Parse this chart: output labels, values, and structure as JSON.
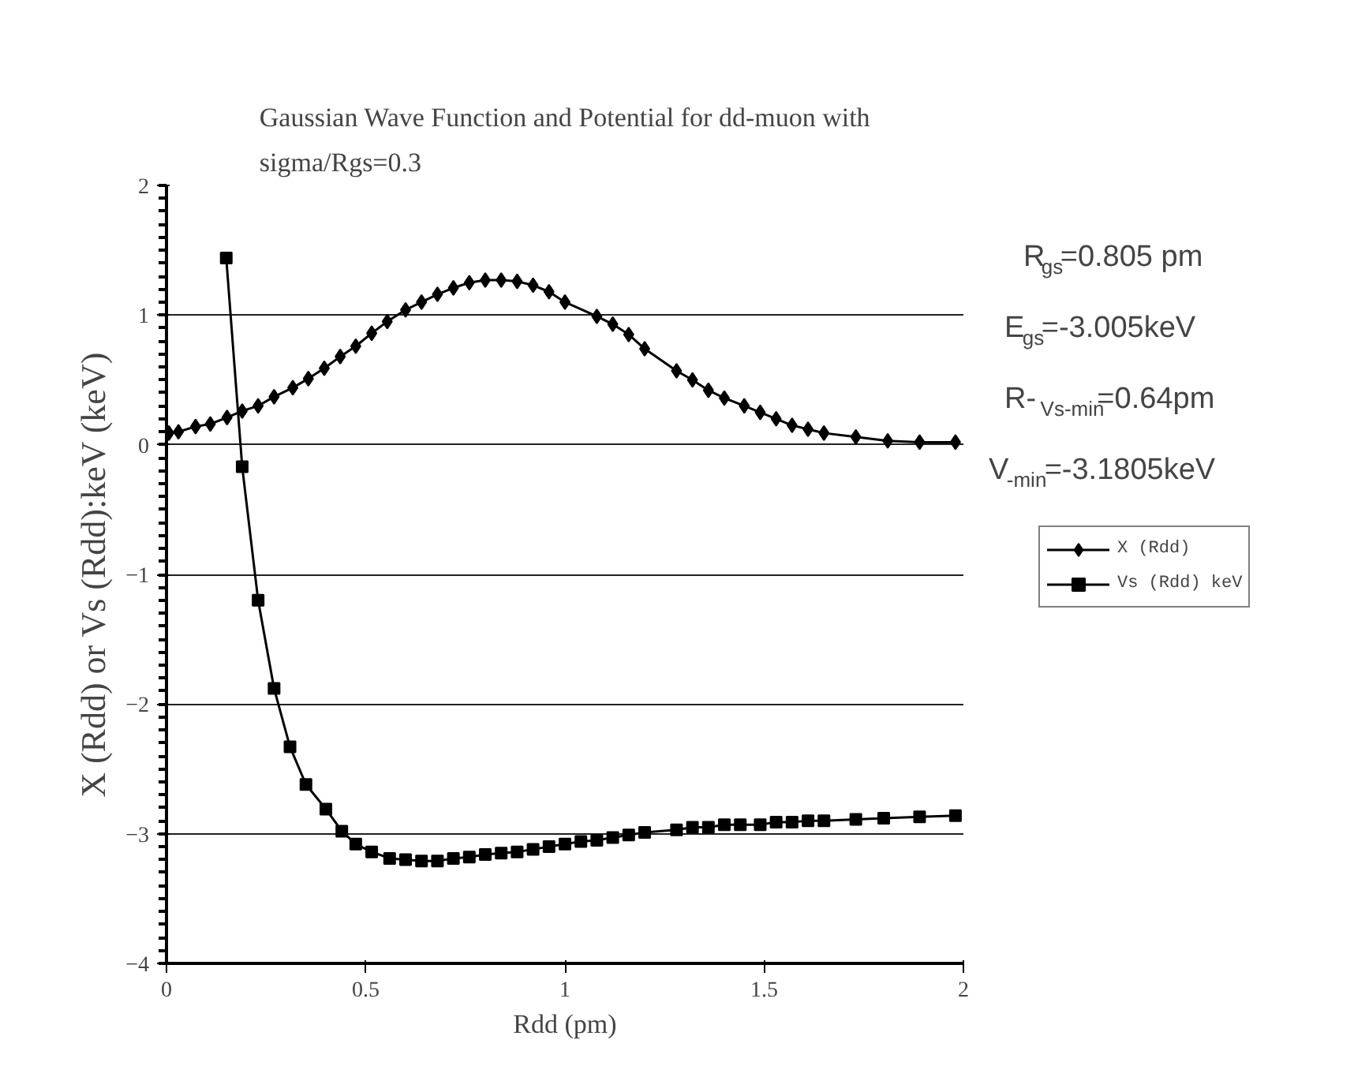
{
  "chart_data": {
    "type": "line",
    "title": "Gaussian Wave Function and Potential for dd-muon with\nsigma/Rgs=0.3",
    "xlabel": "Rdd (pm)",
    "ylabel": "X (Rdd) or Vs (Rdd):keV (keV)",
    "xlim": [
      0,
      2
    ],
    "xticks": [
      0,
      0.5,
      1,
      1.5,
      2
    ],
    "ylim": [
      -4,
      2
    ],
    "yticks": [
      -4,
      -3,
      -2,
      -1,
      0,
      1,
      2
    ],
    "grid": "y",
    "legend": "right",
    "line_style": "solid",
    "series": [
      {
        "name": "X (Rdd)",
        "color": "#000000",
        "marker": "diamond",
        "x": [
          0.006,
          0.03,
          0.073,
          0.11,
          0.152,
          0.19,
          0.23,
          0.27,
          0.317,
          0.356,
          0.396,
          0.436,
          0.475,
          0.515,
          0.554,
          0.6,
          0.64,
          0.68,
          0.72,
          0.76,
          0.8,
          0.84,
          0.88,
          0.92,
          0.96,
          1.0,
          1.08,
          1.12,
          1.16,
          1.2,
          1.28,
          1.32,
          1.36,
          1.4,
          1.45,
          1.49,
          1.53,
          1.57,
          1.61,
          1.65,
          1.73,
          1.81,
          1.89,
          1.98
        ],
        "values": [
          0.09,
          0.1,
          0.14,
          0.16,
          0.21,
          0.26,
          0.3,
          0.37,
          0.44,
          0.51,
          0.59,
          0.68,
          0.76,
          0.86,
          0.95,
          1.04,
          1.1,
          1.16,
          1.21,
          1.25,
          1.27,
          1.27,
          1.26,
          1.23,
          1.18,
          1.1,
          0.99,
          0.93,
          0.85,
          0.74,
          0.57,
          0.5,
          0.42,
          0.36,
          0.3,
          0.25,
          0.2,
          0.15,
          0.12,
          0.09,
          0.06,
          0.03,
          0.02,
          0.02
        ]
      },
      {
        "name": "Vs (Rdd) keV",
        "color": "#000000",
        "marker": "square",
        "x": [
          0.15,
          0.19,
          0.23,
          0.27,
          0.31,
          0.35,
          0.4,
          0.44,
          0.475,
          0.515,
          0.56,
          0.6,
          0.64,
          0.68,
          0.72,
          0.76,
          0.8,
          0.84,
          0.88,
          0.92,
          0.96,
          1.0,
          1.04,
          1.08,
          1.12,
          1.16,
          1.2,
          1.28,
          1.32,
          1.36,
          1.4,
          1.44,
          1.49,
          1.53,
          1.57,
          1.61,
          1.65,
          1.73,
          1.8,
          1.89,
          1.98
        ],
        "values": [
          1.44,
          -0.17,
          -1.2,
          -1.88,
          -2.33,
          -2.62,
          -2.81,
          -2.98,
          -3.08,
          -3.14,
          -3.19,
          -3.2,
          -3.21,
          -3.21,
          -3.19,
          -3.18,
          -3.16,
          -3.15,
          -3.14,
          -3.12,
          -3.1,
          -3.08,
          -3.06,
          -3.05,
          -3.03,
          -3.01,
          -2.99,
          -2.97,
          -2.95,
          -2.95,
          -2.93,
          -2.93,
          -2.93,
          -2.91,
          -2.91,
          -2.9,
          -2.9,
          -2.89,
          -2.88,
          -2.87,
          -2.86
        ]
      }
    ],
    "annotations": [
      "R$_{gs}$=0.805 pm",
      "E$_{gs}$=-3.005keV",
      "R-$_{Vs-min}$=0.64pm",
      "V$_{-min}$=-3.1805keV"
    ]
  }
}
